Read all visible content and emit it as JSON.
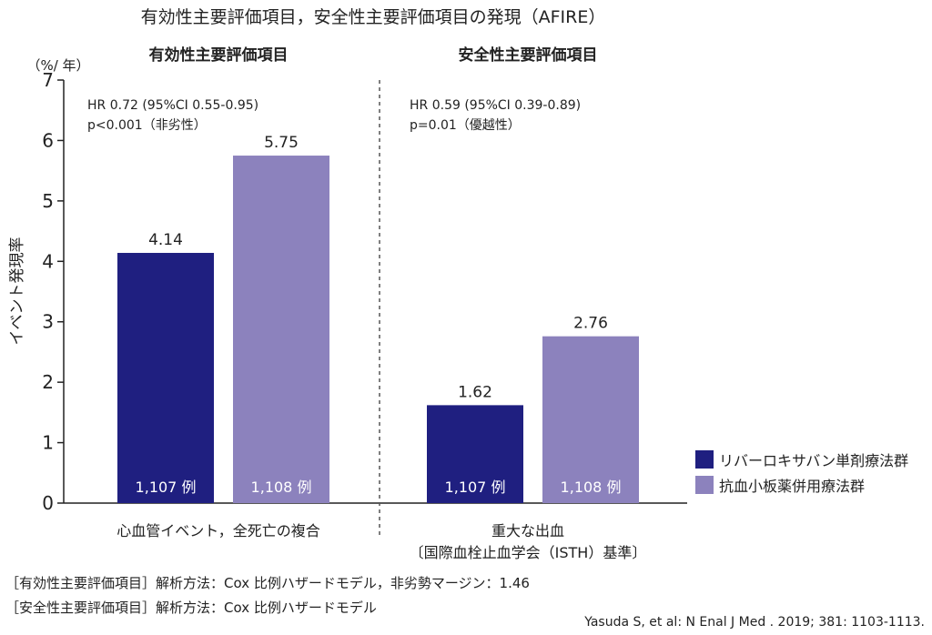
{
  "title": "有効性主要評価項目，安全性主要評価項目の発現（AFIRE）",
  "footnotes": [
    "［有効性主要評価項目］解析方法：Cox 比例ハザードモデル，非劣勢マージン：1.46",
    "［安全性主要評価項目］解析方法：Cox 比例ハザードモデル"
  ],
  "citation": "Yasuda S, et al: N Enal J Med . 2019; 381: 1103-1113.",
  "colors": {
    "rivaroxaban": "#1f1f80",
    "antiplatelet": "#8c82bd",
    "divider": "#555555",
    "axis": "#222222"
  },
  "chart_data": {
    "type": "bar",
    "ylabel": "イベント発現率",
    "yunit": "（%/ 年）",
    "ylim": [
      0,
      7
    ],
    "yticks": [
      "0",
      "1",
      "2",
      "3",
      "4",
      "5",
      "6",
      "7"
    ],
    "legend_position": "bottom-right",
    "series": [
      {
        "name": "リバーロキサバン単剤療法群",
        "values": [
          4.14,
          1.62
        ],
        "value_labels": [
          "4.14",
          "1.62"
        ],
        "n_labels": [
          "1,107 例",
          "1,107 例"
        ]
      },
      {
        "name": "抗血小板薬併用療法群",
        "values": [
          5.75,
          2.76
        ],
        "value_labels": [
          "5.75",
          "2.76"
        ],
        "n_labels": [
          "1,108 例",
          "1,108 例"
        ]
      }
    ],
    "panels": [
      {
        "heading": "有効性主要評価項目",
        "stats": [
          "HR 0.72 (95%CI 0.55-0.95)",
          "p<0.001（非劣性）"
        ],
        "category": [
          "心血管イベント，全死亡の複合"
        ]
      },
      {
        "heading": "安全性主要評価項目",
        "stats": [
          "HR 0.59 (95%CI 0.39-0.89)",
          "p=0.01（優越性）"
        ],
        "category": [
          "重大な出血",
          "〔国際血栓止血学会（ISTH）基準〕"
        ]
      }
    ]
  }
}
